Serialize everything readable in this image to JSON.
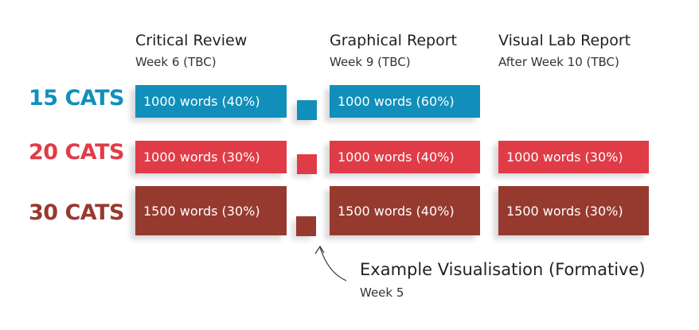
{
  "colors": {
    "cats15": "#118fba",
    "cats20": "#e03c47",
    "cats30": "#963a30"
  },
  "columns": [
    {
      "title": "Critical Review",
      "when": "Week 6 (TBC)"
    },
    {
      "title": "Graphical Report",
      "when": "Week 9 (TBC)"
    },
    {
      "title": "Visual Lab Report",
      "when": "After Week 10 (TBC)"
    }
  ],
  "rows": [
    {
      "label": "15 CATS",
      "cells": [
        "1000 words (40%)",
        "1000 words (60%)"
      ]
    },
    {
      "label": "20 CATS",
      "cells": [
        "1000 words (30%)",
        "1000 words (40%)",
        "1000 words (30%)"
      ]
    },
    {
      "label": "30 CATS",
      "cells": [
        "1500 words (30%)",
        "1500 words (40%)",
        "1500 words (30%)"
      ]
    }
  ],
  "formative": {
    "title": "Example Visualisation (Formative)",
    "when": "Week 5",
    "icon": "curved-arrow-icon"
  }
}
